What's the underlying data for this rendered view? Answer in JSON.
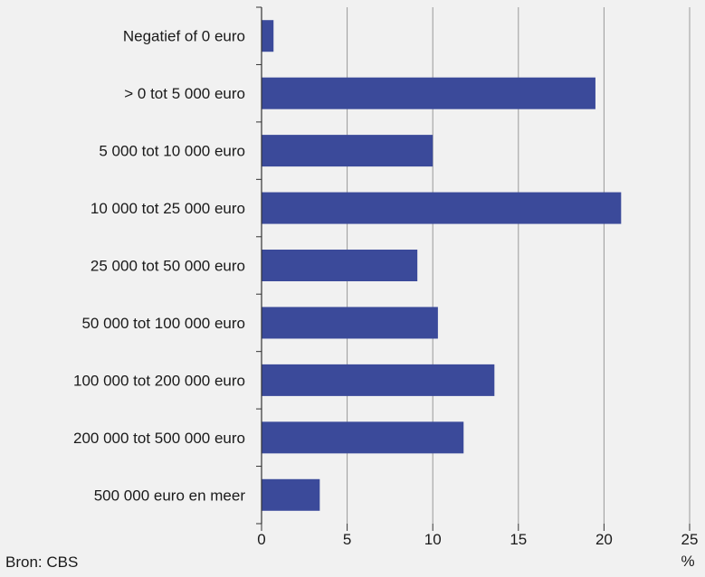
{
  "chart_data": {
    "type": "bar",
    "orientation": "horizontal",
    "categories": [
      "Negatief of 0 euro",
      "> 0 tot 5 000 euro",
      "5 000 tot 10 000 euro",
      "10 000 tot 25 000 euro",
      "25 000 tot 50 000 euro",
      "50 000 tot 100 000 euro",
      "100 000 tot 200 000 euro",
      "200 000 tot 500 000 euro",
      "500 000 euro en meer"
    ],
    "values": [
      0.7,
      19.5,
      10.0,
      21.0,
      9.1,
      10.3,
      13.6,
      11.8,
      3.4
    ],
    "xlim": [
      0,
      25
    ],
    "xticks": [
      0,
      5,
      10,
      15,
      20,
      25
    ],
    "x_unit_label": "%",
    "grid": "vertical",
    "bar_color": "#3b4a9a",
    "background_color": "#f1f1f1",
    "gridline_color": "#9a9a9a"
  },
  "source": "Bron: CBS"
}
